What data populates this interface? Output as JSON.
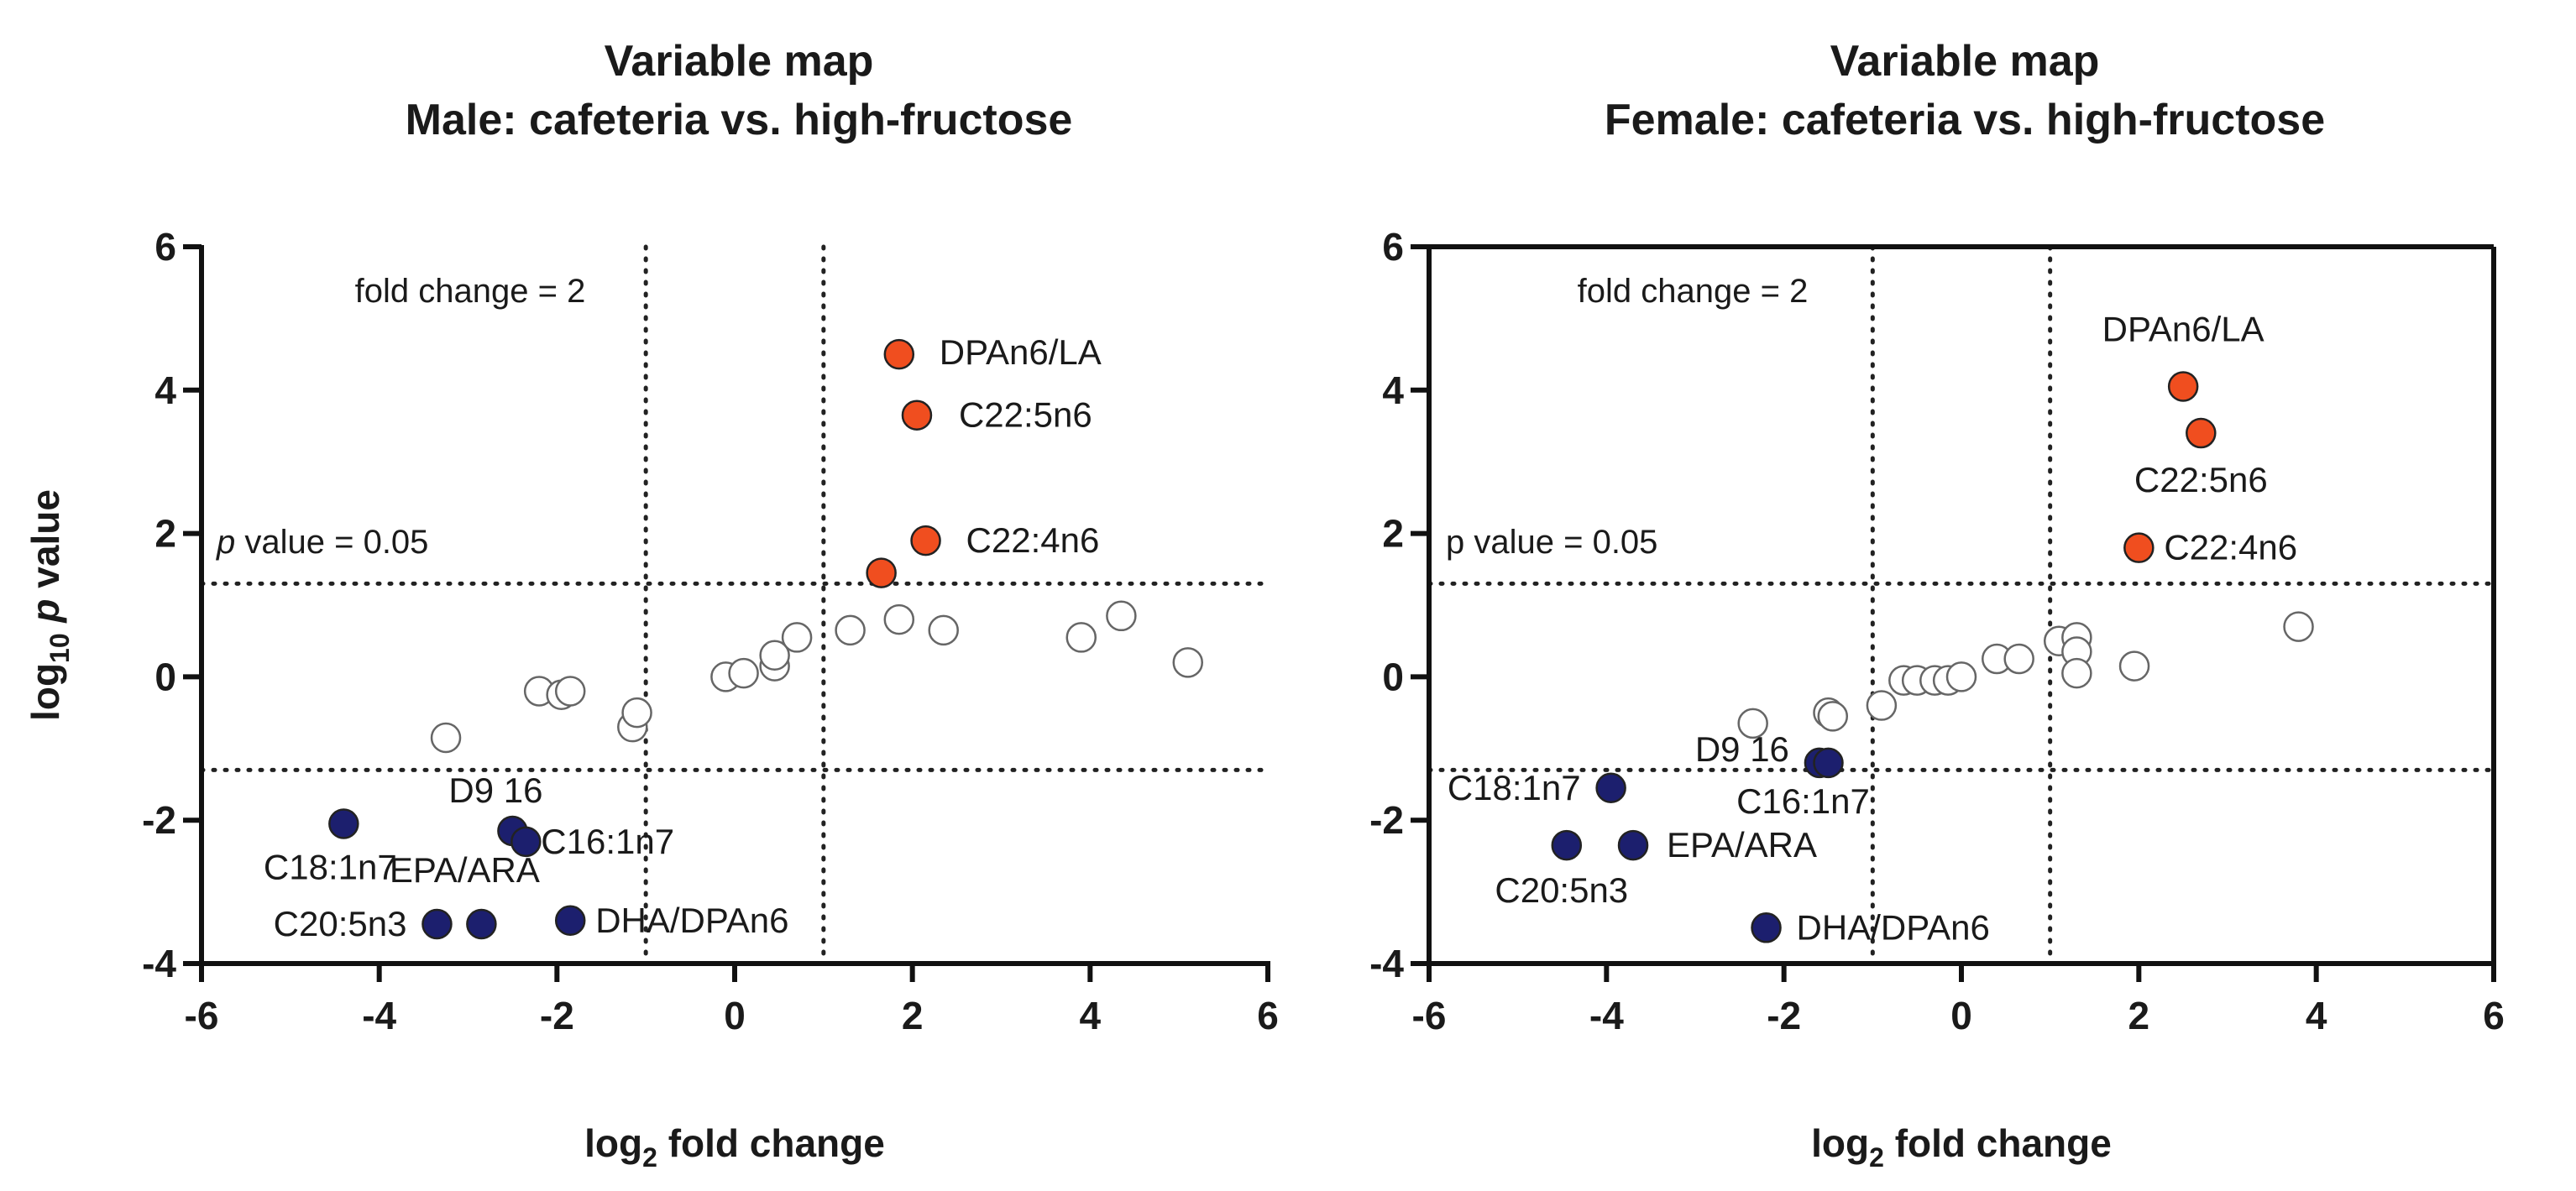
{
  "chart_data": [
    {
      "type": "scatter",
      "title": [
        "Variable map",
        "Male: cafeteria vs. high-fructose"
      ],
      "xlabel": {
        "main": "log",
        "sub": "2",
        "rest": " fold change"
      },
      "ylabel": {
        "main": "log",
        "sub": "10",
        "italic": "p",
        "rest": " value"
      },
      "xlim": [
        -6,
        6
      ],
      "ylim": [
        -4,
        6
      ],
      "xticks": [
        "-6",
        "-4",
        "-2",
        "0",
        "2",
        "4",
        "6"
      ],
      "yticks": [
        "-4",
        "-2",
        "0",
        "2",
        "4",
        "6"
      ],
      "thresholds": {
        "x": [
          -1,
          1
        ],
        "y": [
          -1.3,
          1.3
        ]
      },
      "annotations": {
        "fold": "fold change = 2",
        "pval_italic": "p",
        "pval_rest": " value = 0.05"
      },
      "colors": {
        "up": "#f04e1f",
        "down": "#1c1f6e",
        "ns": "#ffffff",
        "edge": "#666666"
      },
      "points": [
        {
          "x": 1.85,
          "y": 4.5,
          "group": "up",
          "label": "DPAn6/LA"
        },
        {
          "x": 2.05,
          "y": 3.65,
          "group": "up",
          "label": "C22:5n6"
        },
        {
          "x": 2.15,
          "y": 1.9,
          "group": "up",
          "label": "C22:4n6"
        },
        {
          "x": 1.65,
          "y": 1.45,
          "group": "up",
          "label": ""
        },
        {
          "x": -4.4,
          "y": -2.05,
          "group": "down",
          "label": "C18:1n7"
        },
        {
          "x": -2.5,
          "y": -2.15,
          "group": "down",
          "label": "D9 16"
        },
        {
          "x": -2.35,
          "y": -2.3,
          "group": "down",
          "label": "C16:1n7"
        },
        {
          "x": -3.35,
          "y": -3.45,
          "group": "down",
          "label": "C20:5n3"
        },
        {
          "x": -2.85,
          "y": -3.45,
          "group": "down",
          "label": "EPA/ARA"
        },
        {
          "x": -1.85,
          "y": -3.4,
          "group": "down",
          "label": "DHA/DPAn6"
        },
        {
          "x": -3.25,
          "y": -0.85,
          "group": "ns",
          "label": ""
        },
        {
          "x": -2.2,
          "y": -0.2,
          "group": "ns",
          "label": ""
        },
        {
          "x": -1.95,
          "y": -0.25,
          "group": "ns",
          "label": ""
        },
        {
          "x": -1.85,
          "y": -0.2,
          "group": "ns",
          "label": ""
        },
        {
          "x": -1.15,
          "y": -0.7,
          "group": "ns",
          "label": ""
        },
        {
          "x": -1.1,
          "y": -0.5,
          "group": "ns",
          "label": ""
        },
        {
          "x": -0.1,
          "y": 0.0,
          "group": "ns",
          "label": ""
        },
        {
          "x": 0.1,
          "y": 0.05,
          "group": "ns",
          "label": ""
        },
        {
          "x": 0.45,
          "y": 0.15,
          "group": "ns",
          "label": ""
        },
        {
          "x": 0.45,
          "y": 0.3,
          "group": "ns",
          "label": ""
        },
        {
          "x": 0.7,
          "y": 0.55,
          "group": "ns",
          "label": ""
        },
        {
          "x": 1.3,
          "y": 0.65,
          "group": "ns",
          "label": ""
        },
        {
          "x": 1.85,
          "y": 0.8,
          "group": "ns",
          "label": ""
        },
        {
          "x": 2.35,
          "y": 0.65,
          "group": "ns",
          "label": ""
        },
        {
          "x": 3.9,
          "y": 0.55,
          "group": "ns",
          "label": ""
        },
        {
          "x": 4.35,
          "y": 0.85,
          "group": "ns",
          "label": ""
        },
        {
          "x": 5.1,
          "y": 0.2,
          "group": "ns",
          "label": ""
        }
      ]
    },
    {
      "type": "scatter",
      "title": [
        "Variable map",
        "Female: cafeteria vs. high-fructose"
      ],
      "xlabel": {
        "main": "log",
        "sub": "2",
        "rest": " fold change"
      },
      "ylabel": null,
      "xlim": [
        -6,
        6
      ],
      "ylim": [
        -4,
        6
      ],
      "xticks": [
        "-6",
        "-4",
        "-2",
        "0",
        "2",
        "4",
        "6"
      ],
      "yticks": [
        "-4",
        "-2",
        "0",
        "2",
        "4",
        "6"
      ],
      "thresholds": {
        "x": [
          -1,
          1
        ],
        "y": [
          -1.3,
          1.3
        ]
      },
      "annotations": {
        "fold": "fold change = 2",
        "pval_italic": "",
        "pval_rest": "p value = 0.05"
      },
      "colors": {
        "up": "#f04e1f",
        "down": "#1c1f6e",
        "ns": "#ffffff",
        "edge": "#666666"
      },
      "points": [
        {
          "x": 2.5,
          "y": 4.05,
          "group": "up",
          "label": "DPAn6/LA"
        },
        {
          "x": 2.7,
          "y": 3.4,
          "group": "up",
          "label": "C22:5n6"
        },
        {
          "x": 2.0,
          "y": 1.8,
          "group": "up",
          "label": "C22:4n6"
        },
        {
          "x": -3.95,
          "y": -1.55,
          "group": "down",
          "label": "C18:1n7"
        },
        {
          "x": -1.6,
          "y": -1.2,
          "group": "down",
          "label": "D9 16"
        },
        {
          "x": -1.5,
          "y": -1.2,
          "group": "down",
          "label": "C16:1n7"
        },
        {
          "x": -4.45,
          "y": -2.35,
          "group": "down",
          "label": "C20:5n3"
        },
        {
          "x": -3.7,
          "y": -2.35,
          "group": "down",
          "label": "EPA/ARA"
        },
        {
          "x": -2.2,
          "y": -3.5,
          "group": "down",
          "label": "DHA/DPAn6"
        },
        {
          "x": -2.35,
          "y": -0.65,
          "group": "ns",
          "label": ""
        },
        {
          "x": -1.5,
          "y": -0.5,
          "group": "ns",
          "label": ""
        },
        {
          "x": -1.45,
          "y": -0.55,
          "group": "ns",
          "label": ""
        },
        {
          "x": -0.9,
          "y": -0.4,
          "group": "ns",
          "label": ""
        },
        {
          "x": -0.65,
          "y": -0.05,
          "group": "ns",
          "label": ""
        },
        {
          "x": -0.5,
          "y": -0.05,
          "group": "ns",
          "label": ""
        },
        {
          "x": -0.3,
          "y": -0.05,
          "group": "ns",
          "label": ""
        },
        {
          "x": -0.15,
          "y": -0.05,
          "group": "ns",
          "label": ""
        },
        {
          "x": 0.0,
          "y": 0.0,
          "group": "ns",
          "label": ""
        },
        {
          "x": 0.4,
          "y": 0.25,
          "group": "ns",
          "label": ""
        },
        {
          "x": 0.65,
          "y": 0.25,
          "group": "ns",
          "label": ""
        },
        {
          "x": 1.1,
          "y": 0.5,
          "group": "ns",
          "label": ""
        },
        {
          "x": 1.3,
          "y": 0.55,
          "group": "ns",
          "label": ""
        },
        {
          "x": 1.3,
          "y": 0.35,
          "group": "ns",
          "label": ""
        },
        {
          "x": 1.3,
          "y": 0.05,
          "group": "ns",
          "label": ""
        },
        {
          "x": 1.95,
          "y": 0.15,
          "group": "ns",
          "label": ""
        },
        {
          "x": 3.8,
          "y": 0.7,
          "group": "ns",
          "label": ""
        }
      ]
    }
  ]
}
